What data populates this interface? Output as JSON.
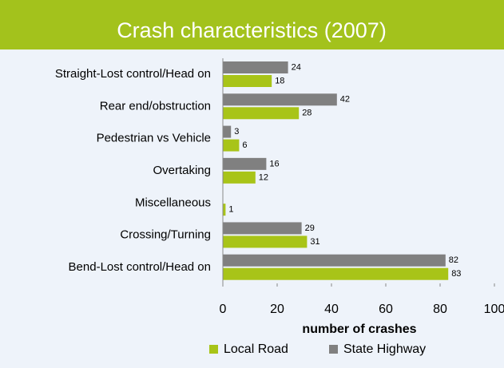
{
  "chart_data": {
    "type": "bar",
    "orientation": "horizontal",
    "title": "Crash characteristics (2007)",
    "categories": [
      "Straight-Lost control/Head on",
      "Rear end/obstruction",
      "Pedestrian vs Vehicle",
      "Overtaking",
      "Miscellaneous",
      "Crossing/Turning",
      "Bend-Lost control/Head on"
    ],
    "series": [
      {
        "name": "State Highway",
        "color": "#808080",
        "values": [
          24,
          42,
          3,
          16,
          null,
          29,
          82
        ]
      },
      {
        "name": "Local Road",
        "color": "#a8c418",
        "values": [
          18,
          28,
          6,
          12,
          1,
          31,
          83
        ]
      }
    ],
    "xlim": [
      0,
      100
    ],
    "xticks": [
      0,
      20,
      40,
      60,
      80,
      100
    ],
    "xlabel": "number of crashes",
    "legend": "bottom"
  }
}
